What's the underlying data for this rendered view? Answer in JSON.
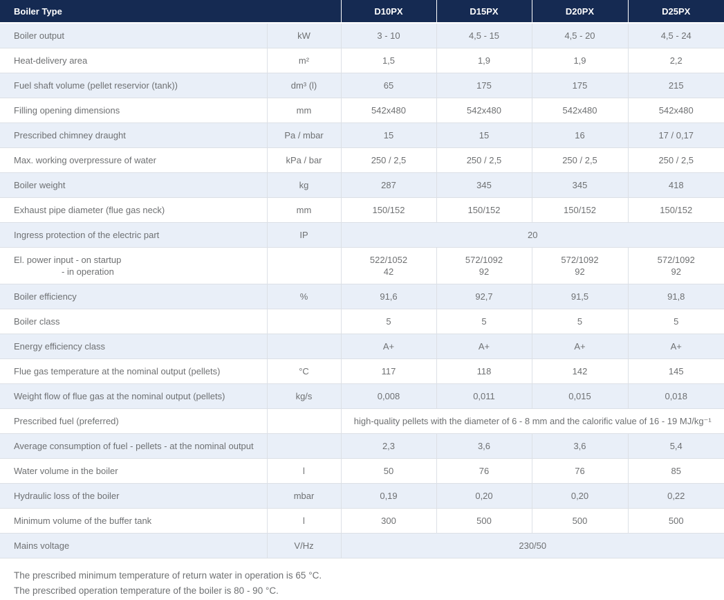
{
  "table": {
    "header": {
      "first_col_label": "Boiler Type",
      "models": [
        "D10PX",
        "D15PX",
        "D20PX",
        "D25PX"
      ]
    },
    "rows": [
      {
        "label": "Boiler output",
        "unit": "kW",
        "values": [
          "3 - 10",
          "4,5 - 15",
          "4,5 - 20",
          "4,5 - 24"
        ]
      },
      {
        "label": "Heat-delivery area",
        "unit": "m²",
        "values": [
          "1,5",
          "1,9",
          "1,9",
          "2,2"
        ]
      },
      {
        "label": "Fuel shaft volume (pellet reservior (tank))",
        "unit": "dm³ (l)",
        "values": [
          "65",
          "175",
          "175",
          "215"
        ]
      },
      {
        "label": "Filling opening dimensions",
        "unit": "mm",
        "values": [
          "542x480",
          "542x480",
          "542x480",
          "542x480"
        ]
      },
      {
        "label": "Prescribed chimney draught",
        "unit": "Pa / mbar",
        "values": [
          "15",
          "15",
          "16",
          "17 / 0,17"
        ]
      },
      {
        "label": "Max. working overpressure of water",
        "unit": "kPa / bar",
        "values": [
          "250 / 2,5",
          "250 / 2,5",
          "250 / 2,5",
          "250 / 2,5"
        ]
      },
      {
        "label": "Boiler weight",
        "unit": "kg",
        "values": [
          "287",
          "345",
          "345",
          "418"
        ]
      },
      {
        "label": "Exhaust pipe diameter (flue gas neck)",
        "unit": "mm",
        "values": [
          "150/152",
          "150/152",
          "150/152",
          "150/152"
        ]
      },
      {
        "label": "Ingress protection of the electric part",
        "unit": "IP",
        "span_value": "20"
      },
      {
        "label": "El. power input - on startup",
        "label2": "- in operation",
        "unit": "",
        "values": [
          "522/1052\n42",
          "572/1092\n92",
          "572/1092\n92",
          "572/1092\n92"
        ]
      },
      {
        "label": "Boiler efficiency",
        "unit": "%",
        "values": [
          "91,6",
          "92,7",
          "91,5",
          "91,8"
        ]
      },
      {
        "label": "Boiler class",
        "unit": "",
        "values": [
          "5",
          "5",
          "5",
          "5"
        ]
      },
      {
        "label": "Energy efficiency class",
        "unit": "",
        "values": [
          "A+",
          "A+",
          "A+",
          "A+"
        ]
      },
      {
        "label": "Flue gas temperature at the nominal output (pellets)",
        "unit": "°C",
        "values": [
          "117",
          "118",
          "142",
          "145"
        ]
      },
      {
        "label": "Weight flow of flue gas at the nominal output (pellets)",
        "unit": "kg/s",
        "values": [
          "0,008",
          "0,011",
          "0,015",
          "0,018"
        ]
      },
      {
        "label": "Prescribed fuel (preferred)",
        "unit": "",
        "span_value": "high-quality pellets with the diameter of 6 - 8 mm and the calorific value of 16 - 19 MJ/kg⁻¹"
      },
      {
        "label": "Average consumption of fuel - pellets - at the nominal output",
        "unit": "",
        "values": [
          "2,3",
          "3,6",
          "3,6",
          "5,4"
        ]
      },
      {
        "label": "Water volume in the boiler",
        "unit": "l",
        "values": [
          "50",
          "76",
          "76",
          "85"
        ]
      },
      {
        "label": "Hydraulic loss of the boiler",
        "unit": "mbar",
        "values": [
          "0,19",
          "0,20",
          "0,20",
          "0,22"
        ]
      },
      {
        "label": "Minimum volume of the buffer tank",
        "unit": "l",
        "values": [
          "300",
          "500",
          "500",
          "500"
        ]
      },
      {
        "label": "Mains voltage",
        "unit": "V/Hz",
        "span_value": "230/50"
      }
    ],
    "notes": [
      "The prescribed minimum temperature of return water in operation is 65 °C.",
      "The prescribed operation temperature of the boiler is 80 - 90 °C."
    ],
    "colors": {
      "header_bg": "#152a52",
      "header_text": "#ffffff",
      "row_alt_bg": "#e9eff8",
      "row_bg": "#ffffff",
      "border": "#dce0e6",
      "body_text": "#6e7072"
    }
  }
}
